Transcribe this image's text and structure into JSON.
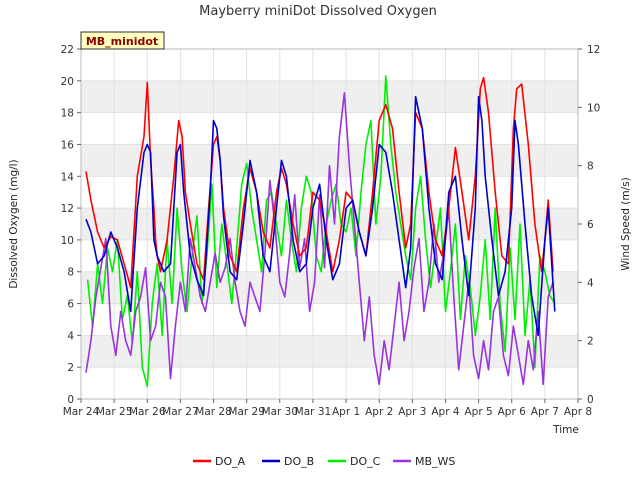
{
  "chart_data": {
    "type": "line",
    "title": "Mayberry miniDot Dissolved Oxygen",
    "badge": "MB_minidot",
    "xlabel": "Time",
    "ylabel": "Dissolved Oxygen (mg/l)",
    "y2label": "Wind Speed (m/s)",
    "x_tick_labels": [
      "Mar 24",
      "Mar 25",
      "Mar 26",
      "Mar 27",
      "Mar 28",
      "Mar 29",
      "Mar 30",
      "Mar 31",
      "Apr 1",
      "Apr 2",
      "Apr 3",
      "Apr 4",
      "Apr 5",
      "Apr 6",
      "Apr 7",
      "Apr 8"
    ],
    "xlim_days": [
      0,
      15
    ],
    "ylim": [
      0,
      22
    ],
    "y_ticks": [
      0,
      2,
      4,
      6,
      8,
      10,
      12,
      14,
      16,
      18,
      20,
      22
    ],
    "y2lim": [
      0,
      12
    ],
    "y2_ticks": [
      0,
      2,
      4,
      6,
      8,
      10,
      12
    ],
    "grid": "horizontal bands",
    "legend_position": "bottom",
    "series": [
      {
        "name": "DO_A",
        "axis": "left",
        "color": "#ff0000",
        "x": [
          0.15,
          0.3,
          0.5,
          0.7,
          0.9,
          1.1,
          1.3,
          1.5,
          1.7,
          1.9,
          2.0,
          2.1,
          2.2,
          2.25,
          2.3,
          2.4,
          2.6,
          2.8,
          2.95,
          3.05,
          3.15,
          3.3,
          3.5,
          3.7,
          3.85,
          4.0,
          4.1,
          4.2,
          4.3,
          4.5,
          4.7,
          4.9,
          5.1,
          5.3,
          5.5,
          5.7,
          5.9,
          6.05,
          6.2,
          6.4,
          6.6,
          6.8,
          7.0,
          7.2,
          7.4,
          7.6,
          7.8,
          8.0,
          8.2,
          8.4,
          8.6,
          8.8,
          9.0,
          9.2,
          9.4,
          9.6,
          9.8,
          9.95,
          10.1,
          10.3,
          10.5,
          10.7,
          10.9,
          11.1,
          11.3,
          11.5,
          11.7,
          11.9,
          12.05,
          12.15,
          12.3,
          12.5,
          12.7,
          12.9,
          13.05,
          13.15,
          13.3,
          13.5,
          13.7,
          13.9,
          14.0,
          14.1,
          14.25
        ],
        "y": [
          14.3,
          12.5,
          10.5,
          9.5,
          10.2,
          10.0,
          8.5,
          7.0,
          14.0,
          16.5,
          19.9,
          15.0,
          12.0,
          10.0,
          9.0,
          8.0,
          10.0,
          14.0,
          17.5,
          16.5,
          13.0,
          11.0,
          8.5,
          7.5,
          12.0,
          16.0,
          16.5,
          15.0,
          12.0,
          9.0,
          8.0,
          12.0,
          14.5,
          13.0,
          10.5,
          9.5,
          13.0,
          14.5,
          13.5,
          11.0,
          9.0,
          9.5,
          13.0,
          12.5,
          10.5,
          8.0,
          10.0,
          13.0,
          12.5,
          10.5,
          9.0,
          13.0,
          17.5,
          18.5,
          17.0,
          13.0,
          9.5,
          11.0,
          18.0,
          17.0,
          13.0,
          10.0,
          9.0,
          12.0,
          15.8,
          13.0,
          10.0,
          14.0,
          19.5,
          20.2,
          18.0,
          13.0,
          9.0,
          8.5,
          17.0,
          19.5,
          19.8,
          16.0,
          11.0,
          8.0,
          10.0,
          12.5,
          8.0
        ]
      },
      {
        "name": "DO_B",
        "axis": "left",
        "color": "#0000cc",
        "x": [
          0.15,
          0.3,
          0.5,
          0.7,
          0.9,
          1.1,
          1.3,
          1.5,
          1.7,
          1.9,
          2.0,
          2.1,
          2.2,
          2.3,
          2.5,
          2.7,
          2.9,
          3.0,
          3.1,
          3.3,
          3.5,
          3.7,
          3.9,
          4.0,
          4.1,
          4.2,
          4.3,
          4.5,
          4.7,
          4.9,
          5.1,
          5.3,
          5.5,
          5.7,
          5.9,
          6.05,
          6.2,
          6.4,
          6.6,
          6.8,
          7.0,
          7.2,
          7.4,
          7.6,
          7.8,
          8.0,
          8.2,
          8.4,
          8.6,
          8.8,
          9.0,
          9.2,
          9.4,
          9.6,
          9.8,
          9.95,
          10.1,
          10.3,
          10.5,
          10.7,
          10.9,
          11.1,
          11.3,
          11.5,
          11.7,
          11.9,
          12.0,
          12.1,
          12.2,
          12.4,
          12.6,
          12.8,
          13.0,
          13.1,
          13.2,
          13.4,
          13.6,
          13.8,
          14.0,
          14.1,
          14.3
        ],
        "y": [
          11.3,
          10.5,
          8.5,
          9.0,
          10.5,
          9.5,
          8.0,
          5.5,
          12.0,
          15.5,
          16.0,
          15.5,
          10.0,
          9.0,
          8.0,
          8.5,
          15.5,
          16.0,
          13.0,
          9.0,
          7.5,
          6.5,
          13.0,
          17.5,
          17.0,
          15.0,
          11.5,
          8.0,
          7.5,
          11.0,
          15.0,
          13.0,
          9.0,
          8.0,
          12.0,
          15.0,
          14.0,
          10.0,
          8.0,
          8.5,
          12.0,
          13.5,
          10.0,
          7.5,
          8.5,
          12.0,
          12.5,
          10.5,
          9.0,
          12.0,
          16.0,
          15.5,
          13.0,
          10.0,
          7.0,
          9.5,
          19.0,
          17.0,
          12.0,
          8.5,
          7.5,
          13.0,
          14.0,
          10.0,
          6.5,
          12.0,
          19.0,
          17.5,
          14.0,
          10.0,
          6.5,
          8.0,
          12.0,
          17.5,
          16.0,
          11.0,
          6.5,
          4.0,
          10.0,
          12.0,
          5.5
        ]
      },
      {
        "name": "DO_C",
        "axis": "left",
        "color": "#00ee00",
        "x": [
          0.2,
          0.35,
          0.5,
          0.65,
          0.8,
          0.95,
          1.1,
          1.25,
          1.4,
          1.55,
          1.7,
          1.85,
          2.0,
          2.15,
          2.3,
          2.45,
          2.6,
          2.75,
          2.9,
          3.05,
          3.2,
          3.35,
          3.5,
          3.65,
          3.8,
          3.95,
          4.1,
          4.25,
          4.4,
          4.55,
          4.7,
          4.85,
          5.0,
          5.15,
          5.3,
          5.45,
          5.6,
          5.75,
          5.9,
          6.05,
          6.2,
          6.35,
          6.5,
          6.65,
          6.8,
          6.95,
          7.1,
          7.25,
          7.4,
          7.55,
          7.7,
          7.85,
          8.0,
          8.15,
          8.3,
          8.45,
          8.6,
          8.75,
          8.9,
          9.05,
          9.2,
          9.35,
          9.5,
          9.65,
          9.8,
          9.95,
          10.1,
          10.25,
          10.4,
          10.55,
          10.7,
          10.85,
          11.0,
          11.15,
          11.3,
          11.45,
          11.6,
          11.75,
          11.9,
          12.05,
          12.2,
          12.35,
          12.5,
          12.65,
          12.8,
          12.95,
          13.1,
          13.25,
          13.4,
          13.55,
          13.7,
          13.85,
          14.0,
          14.15,
          14.3
        ],
        "y": [
          7.5,
          4.5,
          8.5,
          6.0,
          9.5,
          8.0,
          10.0,
          5.0,
          6.5,
          3.5,
          8.0,
          2.0,
          0.8,
          6.0,
          8.5,
          4.0,
          10.0,
          6.0,
          12.0,
          8.0,
          5.5,
          9.0,
          11.5,
          6.0,
          9.0,
          13.5,
          7.0,
          11.0,
          8.5,
          6.0,
          9.5,
          13.5,
          14.8,
          12.0,
          10.0,
          8.0,
          12.5,
          13.0,
          11.0,
          9.0,
          12.5,
          10.0,
          8.0,
          12.0,
          14.0,
          13.0,
          9.0,
          8.0,
          11.0,
          12.5,
          13.5,
          11.0,
          10.5,
          12.0,
          9.0,
          13.0,
          16.0,
          17.5,
          11.0,
          14.0,
          20.3,
          16.0,
          13.0,
          11.0,
          9.0,
          7.5,
          12.0,
          14.0,
          10.0,
          7.0,
          9.5,
          12.0,
          5.5,
          8.0,
          11.0,
          5.0,
          9.0,
          7.0,
          4.0,
          6.5,
          10.0,
          5.0,
          12.0,
          6.0,
          3.0,
          9.5,
          5.0,
          11.0,
          4.0,
          7.5,
          2.0,
          9.0,
          8.0,
          6.5,
          6.0
        ]
      },
      {
        "name": "MB_WS",
        "axis": "right",
        "color": "#9933dd",
        "x": [
          0.15,
          0.3,
          0.45,
          0.6,
          0.75,
          0.9,
          1.05,
          1.2,
          1.35,
          1.5,
          1.65,
          1.8,
          1.95,
          2.1,
          2.25,
          2.4,
          2.55,
          2.7,
          2.85,
          3.0,
          3.15,
          3.3,
          3.45,
          3.6,
          3.75,
          3.9,
          4.05,
          4.2,
          4.35,
          4.5,
          4.65,
          4.8,
          4.95,
          5.1,
          5.25,
          5.4,
          5.55,
          5.7,
          5.85,
          6.0,
          6.15,
          6.3,
          6.45,
          6.6,
          6.75,
          6.9,
          7.05,
          7.2,
          7.35,
          7.5,
          7.65,
          7.8,
          7.95,
          8.1,
          8.25,
          8.4,
          8.55,
          8.7,
          8.85,
          9.0,
          9.15,
          9.3,
          9.45,
          9.6,
          9.75,
          9.9,
          10.05,
          10.2,
          10.35,
          10.5,
          10.65,
          10.8,
          10.95,
          11.1,
          11.25,
          11.4,
          11.55,
          11.7,
          11.85,
          12.0,
          12.15,
          12.3,
          12.45,
          12.6,
          12.75,
          12.9,
          13.05,
          13.2,
          13.35,
          13.5,
          13.65,
          13.8,
          13.95,
          14.1,
          14.25
        ],
        "y": [
          0.9,
          2.0,
          3.5,
          4.5,
          5.5,
          2.5,
          1.5,
          3.0,
          2.0,
          1.5,
          3.0,
          3.5,
          4.5,
          2.0,
          2.5,
          4.0,
          3.5,
          0.7,
          2.5,
          4.0,
          3.0,
          5.5,
          4.5,
          3.5,
          3.0,
          4.0,
          5.0,
          4.0,
          4.5,
          5.5,
          4.0,
          3.0,
          2.5,
          4.0,
          3.5,
          3.0,
          5.0,
          7.5,
          6.0,
          4.0,
          3.5,
          5.0,
          7.0,
          4.5,
          5.5,
          3.0,
          4.0,
          7.0,
          4.5,
          8.0,
          6.0,
          9.0,
          10.5,
          8.0,
          6.0,
          4.0,
          2.0,
          3.5,
          1.5,
          0.5,
          2.0,
          1.0,
          2.5,
          4.0,
          2.0,
          3.0,
          4.5,
          5.5,
          3.0,
          4.0,
          6.0,
          4.0,
          5.0,
          6.5,
          3.5,
          1.0,
          2.5,
          4.0,
          1.5,
          0.7,
          2.0,
          1.0,
          3.0,
          3.5,
          1.5,
          0.8,
          2.5,
          1.5,
          0.5,
          2.0,
          1.0,
          3.0,
          0.5,
          3.5,
          4.0
        ]
      }
    ]
  }
}
